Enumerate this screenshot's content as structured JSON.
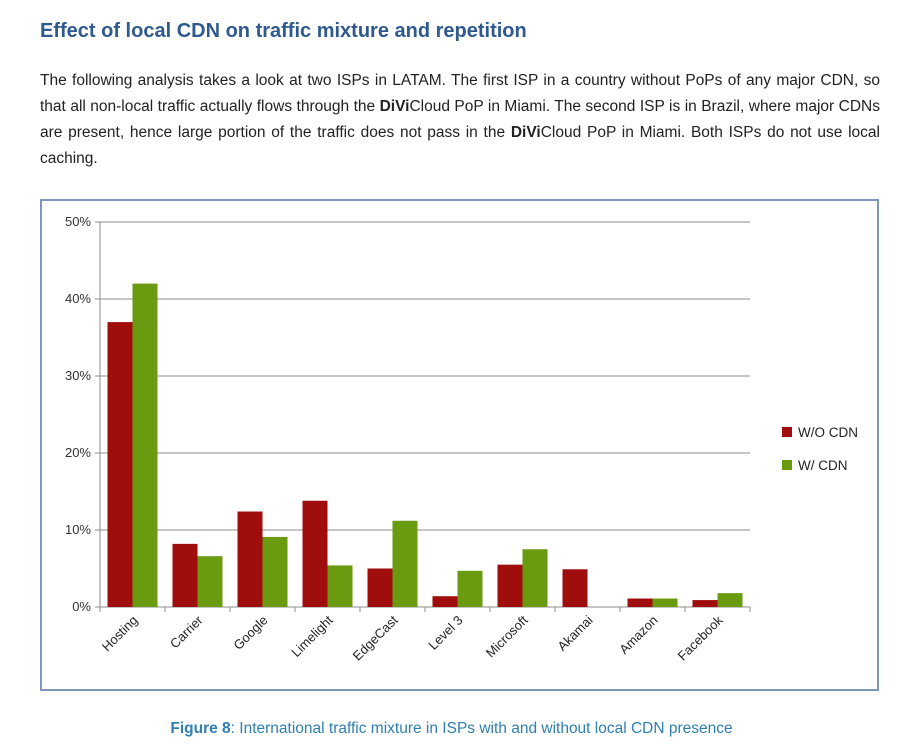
{
  "heading": "Effect of local CDN on traffic mixture and repetition",
  "paragraph": {
    "p1": "The following analysis takes a look at two ISPs in LATAM. The first ISP in a country without PoPs of any major CDN, so that all non-local traffic actually flows through the ",
    "brand_bold": "DiVi",
    "brand_rest": "Cloud",
    "p2": " PoP in Miami. The second ISP is in Brazil, where major CDNs are present, hence large portion of the traffic does not pass in the ",
    "p3": " PoP in Miami. Both ISPs do not use local caching."
  },
  "caption": {
    "label": "Figure 8",
    "text": ": International traffic mixture in ISPs with and without local CDN presence"
  },
  "colors": {
    "heading": "#2f5a8f",
    "caption": "#2f7fb0",
    "frame": "#7f97b9",
    "wo_cdn": "#a00d0d",
    "w_cdn": "#6a9a10"
  },
  "chart_data": {
    "type": "bar",
    "categories": [
      "Hosting",
      "Carrier",
      "Google",
      "Limelight",
      "EdgeCast",
      "Level 3",
      "Microsoft",
      "Akamai",
      "Amazon",
      "Facebook"
    ],
    "series": [
      {
        "name": "W/O CDN",
        "color": "#a00d0d",
        "values": [
          37,
          8.2,
          12.4,
          13.8,
          5,
          1.4,
          5.5,
          4.9,
          1.1,
          0.9
        ]
      },
      {
        "name": "W/ CDN",
        "color": "#6a9a10",
        "values": [
          42,
          6.6,
          9.1,
          5.4,
          11.2,
          4.7,
          7.5,
          0,
          1.1,
          1.8
        ]
      }
    ],
    "yticks": [
      "0%",
      "10%",
      "20%",
      "30%",
      "40%",
      "50%"
    ],
    "ylim": [
      0,
      50
    ],
    "grid": true,
    "legend": "right"
  }
}
